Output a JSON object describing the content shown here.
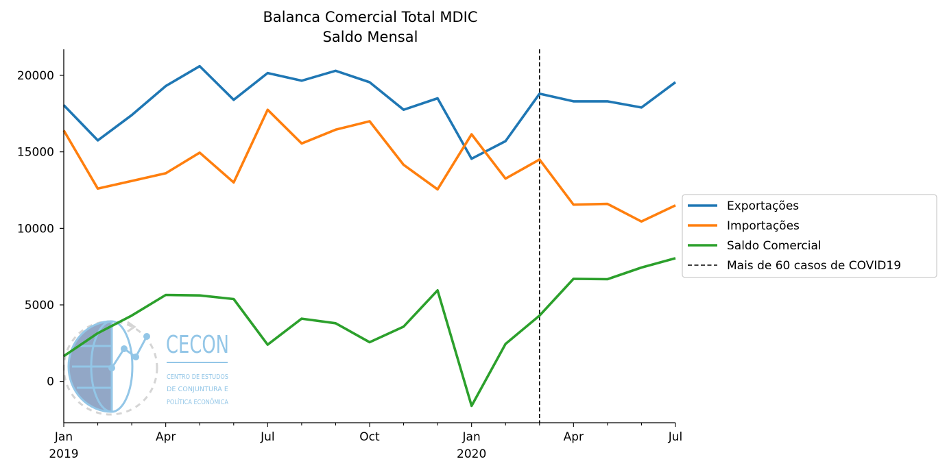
{
  "chart_data": {
    "type": "line",
    "title": "Balanca Comercial Total MDIC",
    "subtitle": "Saldo Mensal",
    "xlabel": "",
    "ylabel": "",
    "x": [
      "2019-01",
      "2019-02",
      "2019-03",
      "2019-04",
      "2019-05",
      "2019-06",
      "2019-07",
      "2019-08",
      "2019-09",
      "2019-10",
      "2019-11",
      "2019-12",
      "2020-01",
      "2020-02",
      "2020-03",
      "2020-04",
      "2020-05",
      "2020-06",
      "2020-07"
    ],
    "x_tick_labels": [
      {
        "x": "2019-01",
        "label": "Jan",
        "sublabel": "2019"
      },
      {
        "x": "2019-04",
        "label": "Apr",
        "sublabel": ""
      },
      {
        "x": "2019-07",
        "label": "Jul",
        "sublabel": ""
      },
      {
        "x": "2019-10",
        "label": "Oct",
        "sublabel": ""
      },
      {
        "x": "2020-01",
        "label": "Jan",
        "sublabel": "2020"
      },
      {
        "x": "2020-04",
        "label": "Apr",
        "sublabel": ""
      },
      {
        "x": "2020-07",
        "label": "Jul",
        "sublabel": ""
      }
    ],
    "y_ticks": [
      0,
      5000,
      10000,
      15000,
      20000
    ],
    "y_tick_labels": [
      "0",
      "5000",
      "10000",
      "15000",
      "20000"
    ],
    "ylim": [
      -2700,
      21700
    ],
    "grid": false,
    "legend_position": "right",
    "series": [
      {
        "name": "Exportações",
        "color": "#1f77b4",
        "values": [
          18050,
          15750,
          17400,
          19300,
          20600,
          18400,
          20150,
          19650,
          20300,
          19550,
          17750,
          18500,
          14550,
          15700,
          18800,
          18300,
          18300,
          17900,
          19550
        ]
      },
      {
        "name": "Importações",
        "color": "#ff7f0e",
        "values": [
          16400,
          12600,
          13100,
          13600,
          14950,
          13000,
          17750,
          15550,
          16450,
          17000,
          14150,
          12550,
          16150,
          13250,
          14500,
          11550,
          11600,
          10450,
          11500
        ]
      },
      {
        "name": "Saldo Comercial",
        "color": "#2ca02c",
        "values": [
          1650,
          3150,
          4300,
          5650,
          5620,
          5380,
          2400,
          4100,
          3800,
          2560,
          3580,
          5950,
          -1600,
          2450,
          4300,
          6700,
          6680,
          7440,
          8050
        ]
      }
    ],
    "annotations": [
      {
        "type": "vline",
        "x": "2020-03",
        "style": "dashed",
        "color": "#000000",
        "label": "Mais de 60 casos de COVID19"
      }
    ]
  },
  "legend": {
    "items": [
      {
        "label": "Exportações",
        "color": "#1f77b4",
        "style": "solid"
      },
      {
        "label": "Importações",
        "color": "#ff7f0e",
        "style": "solid"
      },
      {
        "label": "Saldo Comercial",
        "color": "#2ca02c",
        "style": "solid"
      },
      {
        "label": "Mais de 60 casos de COVID19",
        "color": "#000000",
        "style": "dashed"
      }
    ]
  },
  "logo": {
    "name": "CECON",
    "line1": "CENTRO DE ESTUDOS",
    "line2": "DE CONJUNTURA E",
    "line3": "POLÍTICA ECONÔMICA",
    "color": "#8ec4e6"
  }
}
